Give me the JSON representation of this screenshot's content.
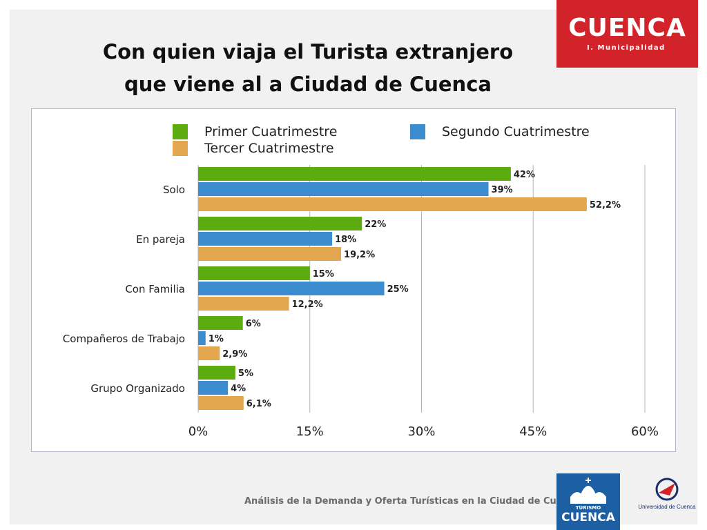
{
  "slide": {
    "title_line1": "Con quien viaja el Turista extranjero",
    "title_line2": "que viene al a Ciudad de Cuenca",
    "footer": "Análisis de la Demanda y Oferta Turísticas en la Ciudad de Cuenca"
  },
  "logos": {
    "cuenca_word": "CUENCA",
    "cuenca_sub": "I. Municipalidad",
    "turismo_line1": "TURISMO",
    "turismo_line2": "CUENCA",
    "universidad": "Universidad de Cuenca"
  },
  "colors": {
    "primer": "#5cac10",
    "segundo": "#3c8dd0",
    "tercer": "#e3a750",
    "header_red": "#d2232a",
    "turismo_blue": "#1d5fa3"
  },
  "chart_data": {
    "type": "bar",
    "orientation": "horizontal",
    "categories": [
      "Solo",
      "En pareja",
      "Con Familia",
      "Compañeros de Trabajo",
      "Grupo Organizado"
    ],
    "series": [
      {
        "name": "Primer Cuatrimestre",
        "values": [
          42,
          22,
          15,
          6,
          5
        ],
        "labels": [
          "42%",
          "22%",
          "15%",
          "6%",
          "5%"
        ]
      },
      {
        "name": "Segundo Cuatrimestre",
        "values": [
          39,
          18,
          25,
          1,
          4
        ],
        "labels": [
          "39%",
          "18%",
          "25%",
          "1%",
          "4%"
        ]
      },
      {
        "name": "Tercer Cuatrimestre",
        "values": [
          52.2,
          19.2,
          12.2,
          2.9,
          6.1
        ],
        "labels": [
          "52,2%",
          "19,2%",
          "12,2%",
          "2,9%",
          "6,1%"
        ]
      }
    ],
    "xlim": [
      0,
      60
    ],
    "xticks": [
      0,
      15,
      30,
      45,
      60
    ],
    "xtick_labels": [
      "0%",
      "15%",
      "30%",
      "45%",
      "60%"
    ],
    "grid": true,
    "legend": "top"
  }
}
